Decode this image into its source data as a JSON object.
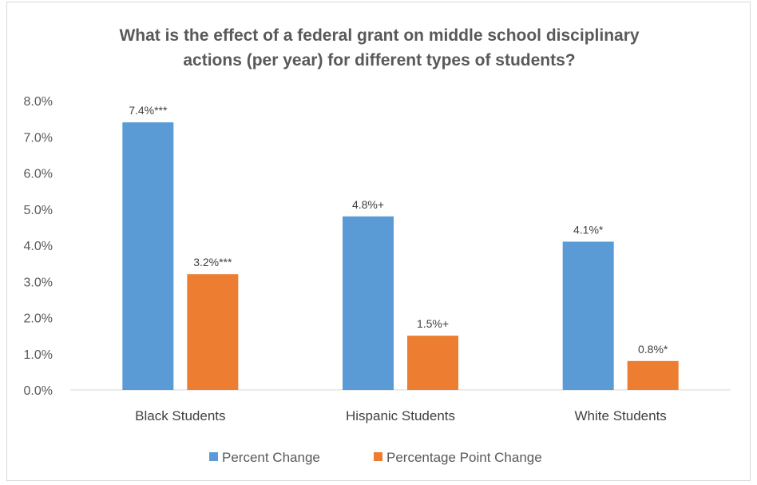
{
  "chart_data": {
    "type": "bar",
    "title_lines": [
      "What is the effect of a federal grant on middle school disciplinary",
      "actions (per year) for different types of students?"
    ],
    "categories": [
      "Black Students",
      "Hispanic Students",
      "White Students"
    ],
    "series": [
      {
        "name": "Percent Change",
        "color": "#5b9bd5",
        "values": [
          7.4,
          4.8,
          4.1
        ],
        "labels": [
          "7.4%***",
          "4.8%+",
          "4.1%*"
        ]
      },
      {
        "name": "Percentage Point Change",
        "color": "#ed7d31",
        "values": [
          3.2,
          1.5,
          0.8
        ],
        "labels": [
          "3.2%***",
          "1.5%+",
          "0.8%*"
        ]
      }
    ],
    "ylim": [
      0,
      8
    ],
    "yticks": [
      "0.0%",
      "1.0%",
      "2.0%",
      "3.0%",
      "4.0%",
      "5.0%",
      "6.0%",
      "7.0%",
      "8.0%"
    ],
    "legend_position": "bottom",
    "grid": false
  }
}
